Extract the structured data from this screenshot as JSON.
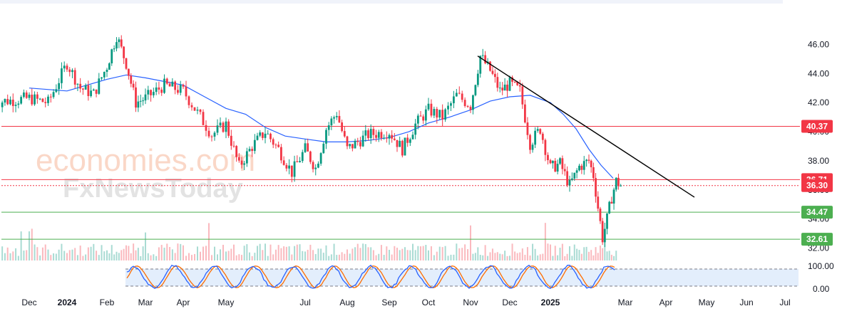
{
  "watermark": {
    "brand_top": "economies.com",
    "brand_bottom": "FxNewsToday"
  },
  "colors": {
    "up": "#089981",
    "down": "#f23645",
    "ma": "#2962ff",
    "resistance": "#f23645",
    "support": "#4caf50",
    "trend": "#000000",
    "stoch_k": "#2962ff",
    "stoch_d": "#ff6d00",
    "stoch_bg": "#e3eefc"
  },
  "chart_data": {
    "type": "candlestick",
    "x_ticks": [
      "Dec",
      "2024",
      "Feb",
      "Mar",
      "Apr",
      "May",
      "Jul",
      "Aug",
      "Sep",
      "Oct",
      "Nov",
      "Dec",
      "2025",
      "Mar",
      "Apr",
      "May",
      "Jun",
      "Jul"
    ],
    "bold_x_ticks": [
      "2024",
      "2025"
    ],
    "y_ticks": [
      "46.00",
      "44.00",
      "42.00",
      "40.00",
      "38.00",
      "36.00",
      "34.00",
      "32.00"
    ],
    "ylim": [
      31.2,
      46.8
    ],
    "oscillator": {
      "y_ticks": [
        "100.00",
        "0.00"
      ],
      "bands": [
        80,
        20
      ]
    },
    "levels": [
      {
        "label": "40.37",
        "value": 40.37,
        "kind": "resistance",
        "style": "solid"
      },
      {
        "label": "36.71",
        "value": 36.71,
        "kind": "resistance",
        "style": "solid"
      },
      {
        "label": "36.30",
        "value": 36.3,
        "kind": "price",
        "style": "dotted"
      },
      {
        "label": "34.47",
        "value": 34.47,
        "kind": "support",
        "style": "solid"
      },
      {
        "label": "32.61",
        "value": 32.61,
        "kind": "support",
        "style": "solid"
      }
    ],
    "trendline": {
      "from": {
        "x": "Nov 2024",
        "y": 45.2
      },
      "to": {
        "x": "Apr 2025",
        "y": 35.5
      }
    },
    "price_path": [
      {
        "x": "Nov 2023",
        "y": 42.0
      },
      {
        "x": "Dec 2023",
        "y": 42.3
      },
      {
        "x": "Dec 2023",
        "y": 42.0
      },
      {
        "x": "Jan 2024",
        "y": 44.7
      },
      {
        "x": "Jan 2024",
        "y": 43.0
      },
      {
        "x": "Jan 2024",
        "y": 42.6
      },
      {
        "x": "Feb 2024",
        "y": 44.5
      },
      {
        "x": "Feb 2024",
        "y": 46.6
      },
      {
        "x": "Feb 2024",
        "y": 44.7
      },
      {
        "x": "Feb 2024",
        "y": 42.0
      },
      {
        "x": "Mar 2024",
        "y": 42.3
      },
      {
        "x": "Mar 2024",
        "y": 43.2
      },
      {
        "x": "Apr 2024",
        "y": 42.8
      },
      {
        "x": "Apr 2024",
        "y": 41.3
      },
      {
        "x": "Apr 2024",
        "y": 39.8
      },
      {
        "x": "May 2024",
        "y": 40.5
      },
      {
        "x": "May 2024",
        "y": 37.6
      },
      {
        "x": "May 2024",
        "y": 39.0
      },
      {
        "x": "Jun 2024",
        "y": 40.0
      },
      {
        "x": "Jun 2024",
        "y": 38.8
      },
      {
        "x": "Jun 2024",
        "y": 37.2
      },
      {
        "x": "Jul 2024",
        "y": 38.8
      },
      {
        "x": "Jul 2024",
        "y": 37.5
      },
      {
        "x": "Jul 2024",
        "y": 40.2
      },
      {
        "x": "Jul 2024",
        "y": 41.3
      },
      {
        "x": "Aug 2024",
        "y": 38.8
      },
      {
        "x": "Aug 2024",
        "y": 39.8
      },
      {
        "x": "Sep 2024",
        "y": 40.0
      },
      {
        "x": "Sep 2024",
        "y": 38.8
      },
      {
        "x": "Sep 2024",
        "y": 40.5
      },
      {
        "x": "Oct 2024",
        "y": 41.5
      },
      {
        "x": "Oct 2024",
        "y": 41.0
      },
      {
        "x": "Oct 2024",
        "y": 42.5
      },
      {
        "x": "Nov 2024",
        "y": 41.8
      },
      {
        "x": "Nov 2024",
        "y": 45.2
      },
      {
        "x": "Nov 2024",
        "y": 44.2
      },
      {
        "x": "Nov 2024",
        "y": 42.8
      },
      {
        "x": "Dec 2024",
        "y": 43.3
      },
      {
        "x": "Dec 2024",
        "y": 42.8
      },
      {
        "x": "Dec 2024",
        "y": 39.2
      },
      {
        "x": "Dec 2024",
        "y": 40.2
      },
      {
        "x": "Jan 2025",
        "y": 37.5
      },
      {
        "x": "Jan 2025",
        "y": 37.8
      },
      {
        "x": "Jan 2025",
        "y": 36.3
      },
      {
        "x": "Jan 2025",
        "y": 37.6
      },
      {
        "x": "Feb 2025",
        "y": 38.0
      },
      {
        "x": "Feb 2025",
        "y": 37.0
      },
      {
        "x": "Feb 2025",
        "y": 34.8
      },
      {
        "x": "Feb 2025",
        "y": 32.7
      },
      {
        "x": "Feb 2025",
        "y": 34.0
      },
      {
        "x": "Feb 2025",
        "y": 35.5
      },
      {
        "x": "Feb 2025",
        "y": 36.6
      },
      {
        "x": "Feb 2025",
        "y": 36.3
      }
    ],
    "ma_path": [
      {
        "x": "Nov 2023",
        "y": 43.7
      },
      {
        "x": "Dec 2023",
        "y": 43.0
      },
      {
        "x": "Jan 2024",
        "y": 42.8
      },
      {
        "x": "Jan 2024",
        "y": 43.2
      },
      {
        "x": "Feb 2024",
        "y": 43.6
      },
      {
        "x": "Feb 2024",
        "y": 43.9
      },
      {
        "x": "Mar 2024",
        "y": 43.7
      },
      {
        "x": "Apr 2024",
        "y": 43.2
      },
      {
        "x": "Apr 2024",
        "y": 42.4
      },
      {
        "x": "May 2024",
        "y": 41.6
      },
      {
        "x": "May 2024",
        "y": 41.2
      },
      {
        "x": "Jun 2024",
        "y": 40.3
      },
      {
        "x": "Jun 2024",
        "y": 39.7
      },
      {
        "x": "Jul 2024",
        "y": 39.5
      },
      {
        "x": "Jul 2024",
        "y": 39.3
      },
      {
        "x": "Aug 2024",
        "y": 39.3
      },
      {
        "x": "Aug 2024",
        "y": 39.4
      },
      {
        "x": "Sep 2024",
        "y": 39.6
      },
      {
        "x": "Sep 2024",
        "y": 40.0
      },
      {
        "x": "Oct 2024",
        "y": 40.6
      },
      {
        "x": "Oct 2024",
        "y": 41.0
      },
      {
        "x": "Nov 2024",
        "y": 41.5
      },
      {
        "x": "Nov 2024",
        "y": 42.1
      },
      {
        "x": "Dec 2024",
        "y": 42.4
      },
      {
        "x": "Dec 2024",
        "y": 42.5
      },
      {
        "x": "Jan 2025",
        "y": 42.0
      },
      {
        "x": "Jan 2025",
        "y": 41.2
      },
      {
        "x": "Jan 2025",
        "y": 40.2
      },
      {
        "x": "Feb 2025",
        "y": 38.8
      },
      {
        "x": "Feb 2025",
        "y": 37.7
      },
      {
        "x": "Feb 2025",
        "y": 36.8
      }
    ]
  }
}
